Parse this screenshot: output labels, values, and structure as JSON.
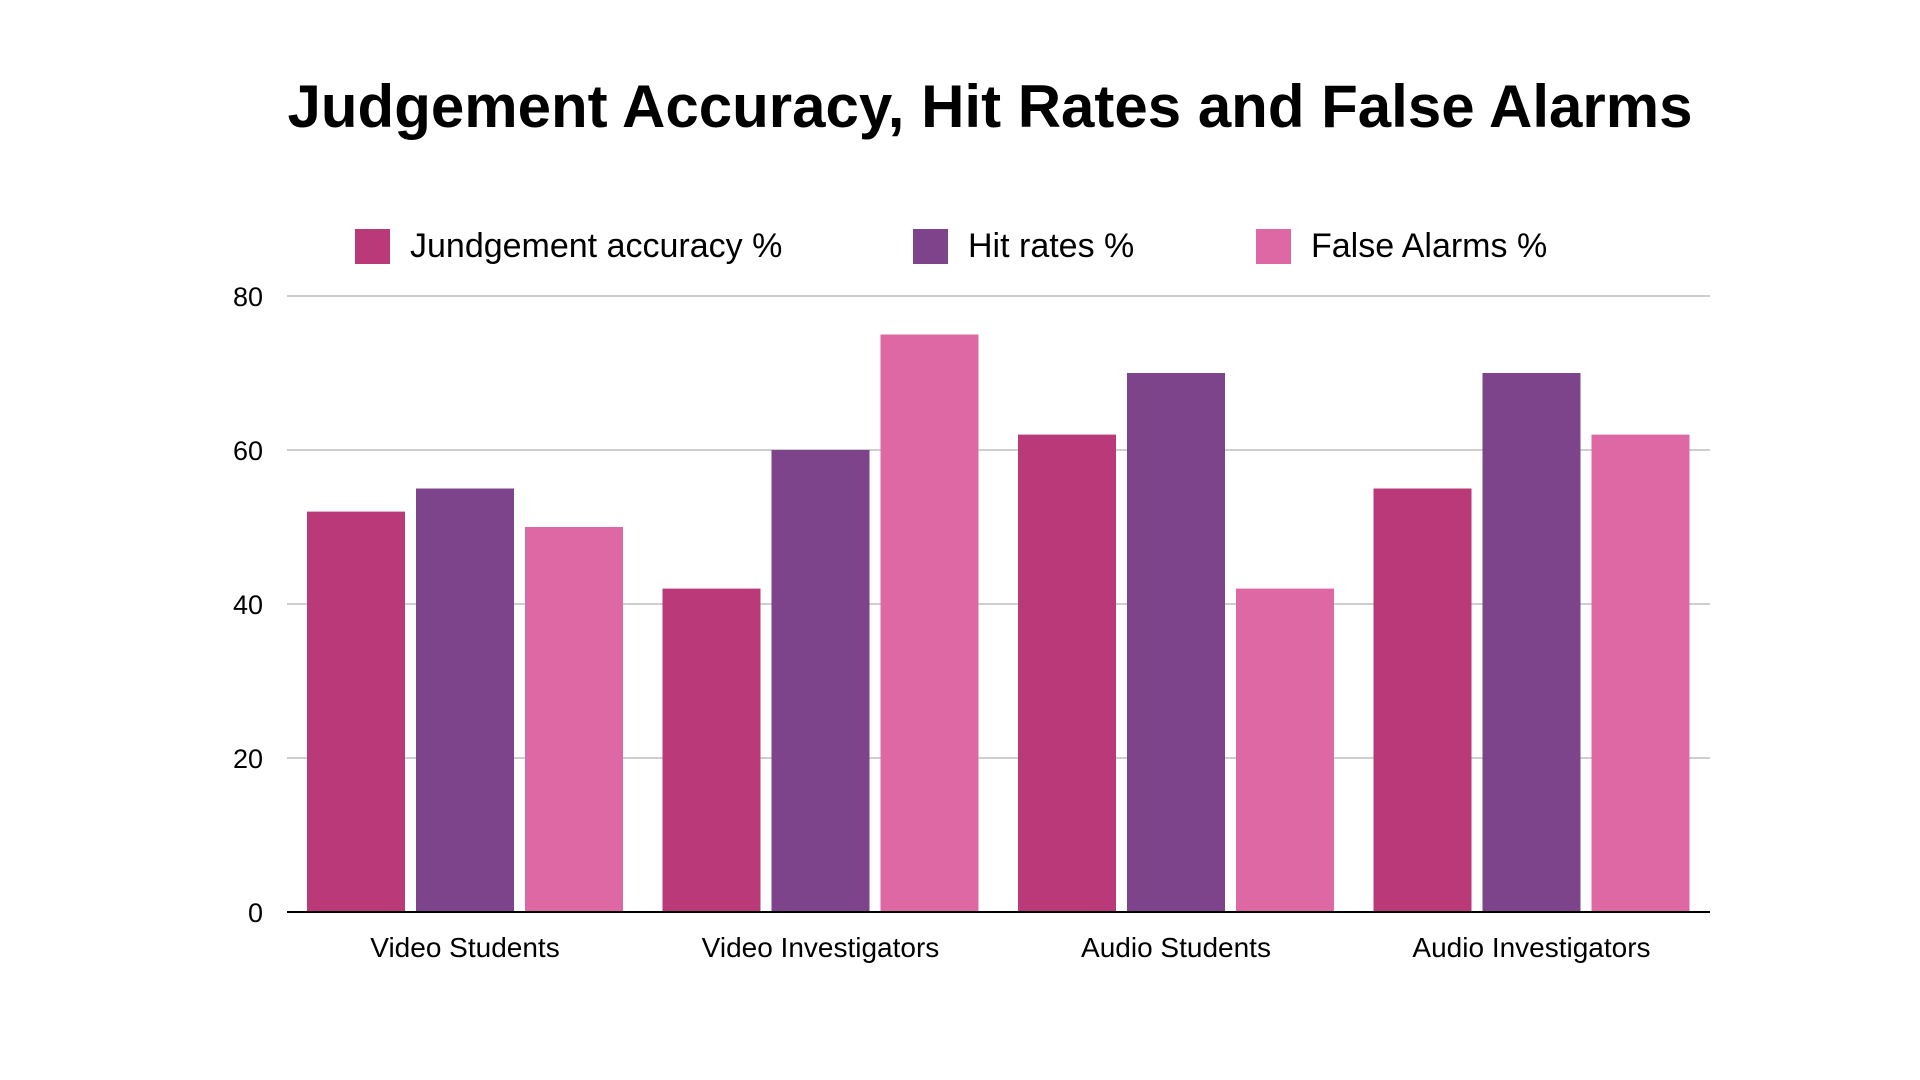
{
  "chart_data": {
    "type": "bar",
    "title": "Judgement Accuracy, Hit Rates and False Alarms",
    "xlabel": "",
    "ylabel": "",
    "categories": [
      "Video Students",
      "Video Investigators",
      "Audio Students",
      "Audio Investigators"
    ],
    "series": [
      {
        "name": "Jundgement accuracy %",
        "color": "#BA3A79",
        "values": [
          52,
          42,
          62,
          55
        ]
      },
      {
        "name": "Hit rates %",
        "color": "#7D448C",
        "values": [
          55,
          60,
          70,
          70
        ]
      },
      {
        "name": "False Alarms %",
        "color": "#DE68A4",
        "values": [
          50,
          75,
          42,
          62
        ]
      }
    ],
    "ylim": [
      0,
      80
    ],
    "yticks": [
      0,
      20,
      40,
      60,
      80
    ],
    "ytick_labels": [
      "0",
      "20",
      "40",
      "60",
      "80"
    ],
    "grid": true,
    "legend_position": "top"
  }
}
